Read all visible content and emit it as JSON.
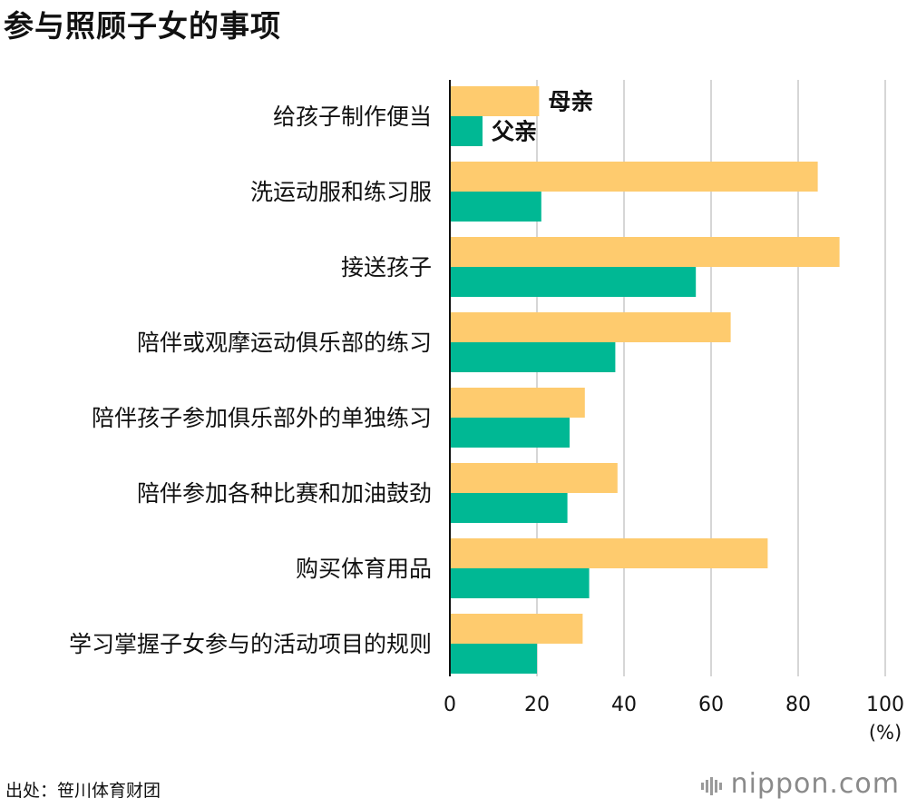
{
  "title": "参与照顾子女的事项",
  "source": "出处：笹川体育财团",
  "brand": "nippon.com",
  "chart_data": {
    "type": "bar",
    "orientation": "horizontal",
    "title": "参与照顾子女的事项",
    "categories": [
      "给孩子制作便当",
      "洗运动服和练习服",
      "接送孩子",
      "陪伴或观摩运动俱乐部的练习",
      "陪伴孩子参加俱乐部外的单独练习",
      "陪伴参加各种比赛和加油鼓劲",
      "购买体育用品",
      "学习掌握子女参与的活动项目的规则"
    ],
    "series": [
      {
        "name": "母亲",
        "color": "#fecb6e",
        "values": [
          20.5,
          84.5,
          89.5,
          64.5,
          31,
          38.5,
          73,
          30.5
        ]
      },
      {
        "name": "父亲",
        "color": "#00b894",
        "values": [
          7.5,
          21,
          56.5,
          38,
          27.5,
          27,
          32,
          20
        ]
      }
    ],
    "xlim": [
      0,
      100
    ],
    "xticks": [
      "0",
      "20",
      "40",
      "60",
      "80",
      "100"
    ],
    "unit": "(%)",
    "grid": true,
    "legend": "inline-first-category"
  }
}
